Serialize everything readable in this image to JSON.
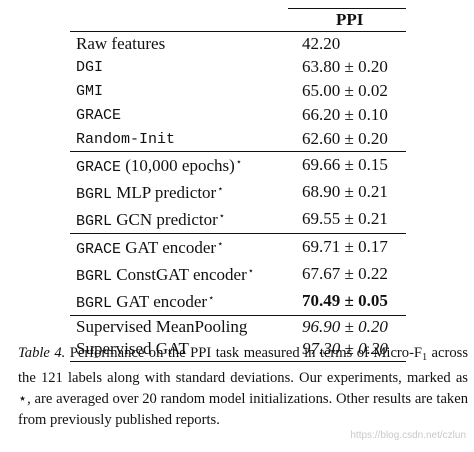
{
  "table": {
    "header": "PPI",
    "groups": [
      [
        {
          "method": "Raw features",
          "mono": false,
          "star": false,
          "score": "42.20",
          "style": "normal"
        },
        {
          "method": "DGI",
          "mono": true,
          "star": false,
          "score": "63.80 ± 0.20",
          "style": "normal"
        },
        {
          "method": "GMI",
          "mono": true,
          "star": false,
          "score": "65.00 ± 0.02",
          "style": "normal"
        },
        {
          "method": "GRACE",
          "mono": true,
          "star": false,
          "score": "66.20 ± 0.10",
          "style": "normal"
        },
        {
          "method": "Random-Init",
          "mono": true,
          "star": false,
          "score": "62.60 ± 0.20",
          "style": "normal"
        }
      ],
      [
        {
          "method_mono": "GRACE",
          "method_rest": "(10,000 epochs)",
          "star": true,
          "score": "69.66 ± 0.15",
          "style": "normal"
        },
        {
          "method_mono": "BGRL",
          "method_rest": "MLP predictor",
          "star": true,
          "score": "68.90 ± 0.21",
          "style": "normal"
        },
        {
          "method_mono": "BGRL",
          "method_rest": "GCN predictor",
          "star": true,
          "score": "69.55 ± 0.21",
          "style": "normal"
        }
      ],
      [
        {
          "method_mono": "GRACE",
          "method_rest": "GAT encoder",
          "star": true,
          "score": "69.71 ± 0.17",
          "style": "normal"
        },
        {
          "method_mono": "BGRL",
          "method_rest": "ConstGAT encoder",
          "star": true,
          "score": "67.67 ± 0.22",
          "style": "normal"
        },
        {
          "method_mono": "BGRL",
          "method_rest": "GAT encoder",
          "star": true,
          "score": "70.49 ± 0.05",
          "style": "bold"
        }
      ],
      [
        {
          "method": "Supervised MeanPooling",
          "mono": false,
          "star": false,
          "score": "96.90 ± 0.20",
          "style": "italic"
        },
        {
          "method": "Supervised GAT",
          "mono": false,
          "star": false,
          "score": "97.30 ± 0.20",
          "style": "italic"
        }
      ]
    ]
  },
  "caption": {
    "label": "Table 4.",
    "text_1": " Performance on the PPI task measured in terms of Micro-F",
    "subscript": "1",
    "text_2": " across the 121 labels along with standard deviations. Our experiments, marked as ⋆, are averaged over 20 random model initializations. Other results are taken from previously published reports."
  },
  "watermark": "https://blog.csdn.net/czlun",
  "star_symbol": "⋆"
}
